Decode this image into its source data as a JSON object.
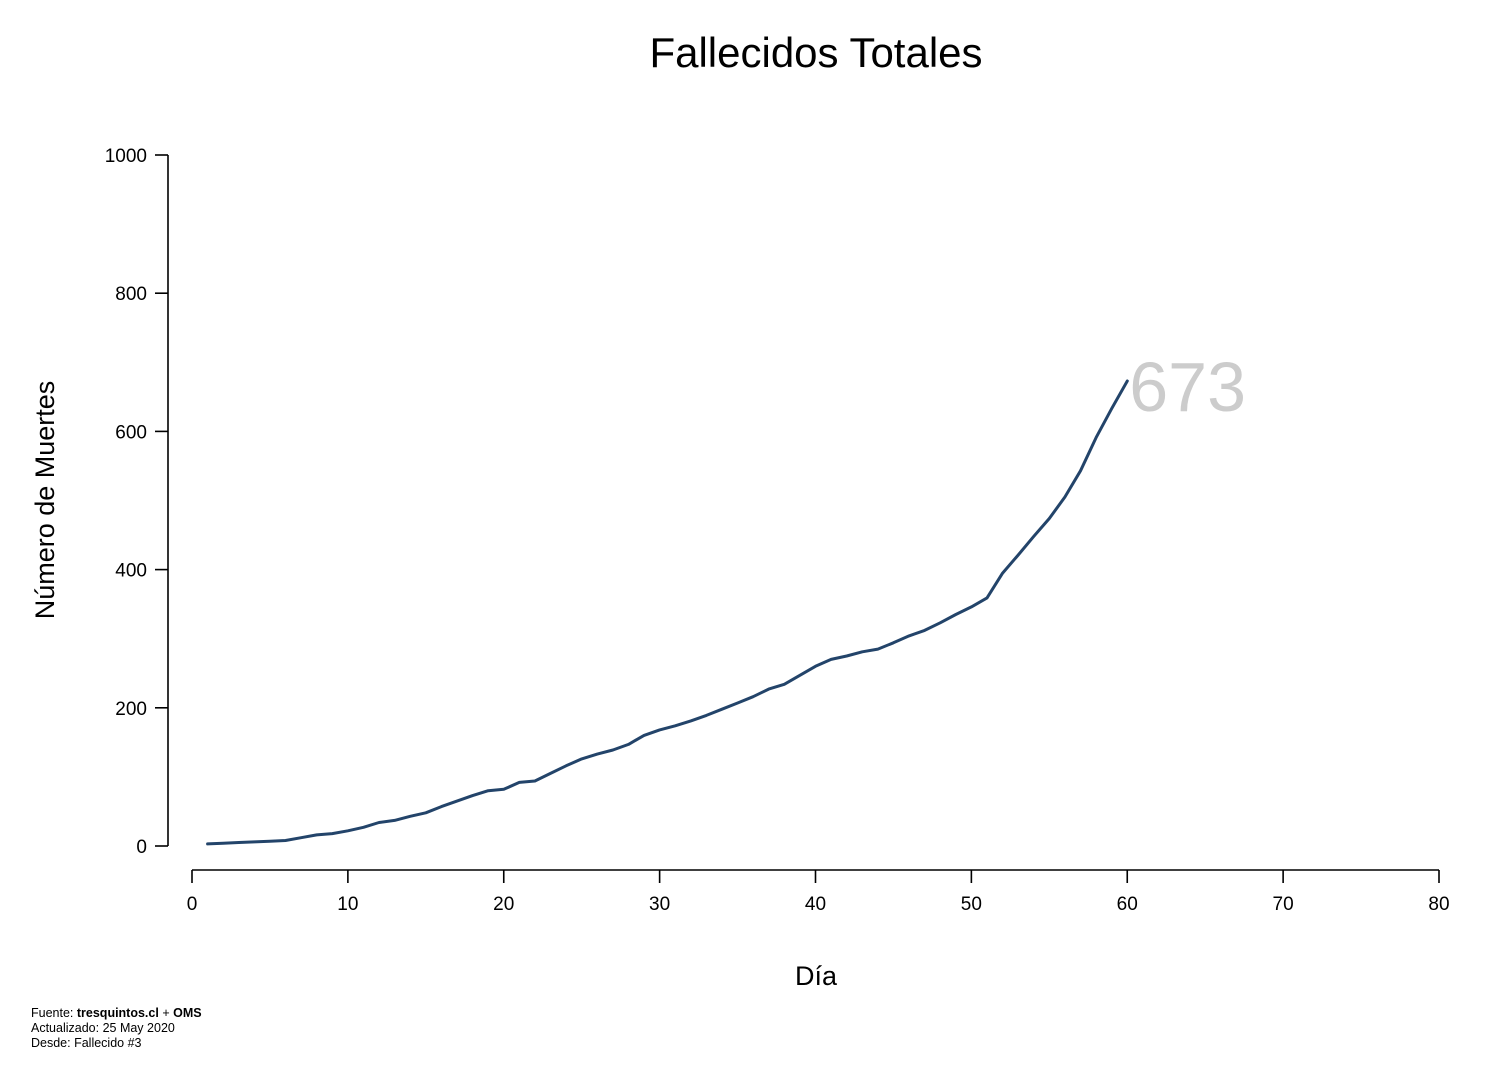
{
  "chart_data": {
    "type": "line",
    "title": "Fallecidos Totales",
    "xlabel": "Día",
    "ylabel": "Número de Muertes",
    "xlim": [
      0,
      80
    ],
    "ylim": [
      0,
      1000
    ],
    "xticks": [
      0,
      10,
      20,
      30,
      40,
      50,
      60,
      70,
      80
    ],
    "yticks": [
      0,
      200,
      400,
      600,
      800,
      1000
    ],
    "grid": false,
    "series": [
      {
        "x": [
          1,
          2,
          3,
          4,
          5,
          6,
          7,
          8,
          9,
          10,
          11,
          12,
          13,
          14,
          15,
          16,
          17,
          18,
          19,
          20,
          21,
          22,
          23,
          24,
          25,
          26,
          27,
          28,
          29,
          30,
          31,
          32,
          33,
          34,
          35,
          36,
          37,
          38,
          39,
          40,
          41,
          42,
          43,
          44,
          45,
          46,
          47,
          48,
          49,
          50,
          51,
          52,
          53,
          54,
          55,
          56,
          57,
          58,
          59,
          60
        ],
        "y": [
          3,
          4,
          5,
          6,
          7,
          8,
          12,
          16,
          18,
          22,
          27,
          34,
          37,
          43,
          48,
          57,
          65,
          73,
          80,
          82,
          92,
          94,
          105,
          116,
          126,
          133,
          139,
          147,
          160,
          168,
          174,
          181,
          189,
          198,
          207,
          216,
          227,
          234,
          247,
          260,
          270,
          275,
          281,
          285,
          294,
          304,
          312,
          323,
          335,
          346,
          359,
          395,
          421,
          448,
          474,
          505,
          543,
          591,
          633,
          673
        ]
      }
    ],
    "last_value_label": "673",
    "colors": {
      "line": "#23446a",
      "last_label": "#cccccc"
    }
  },
  "footer": {
    "source_prefix": "Fuente: ",
    "source_site": "tresquintos.cl",
    "source_plus": " + ",
    "source_org": "OMS",
    "updated": "Actualizado: 25 May 2020",
    "since": "Desde: Fallecido #3"
  }
}
